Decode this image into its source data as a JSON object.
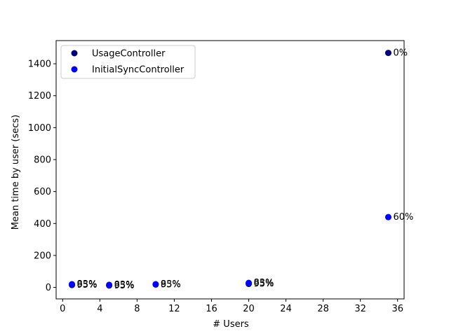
{
  "chart_data": {
    "type": "scatter",
    "title": "",
    "xlabel": "# Users",
    "ylabel": "Mean time by user (secs)",
    "xlim": [
      -0.7,
      36.7
    ],
    "ylim": [
      -72,
      1545
    ],
    "xticks": [
      0,
      4,
      8,
      12,
      16,
      20,
      24,
      28,
      32,
      36
    ],
    "yticks": [
      0,
      200,
      400,
      600,
      800,
      1000,
      1200,
      1400
    ],
    "grid": false,
    "legend_position": "top-left",
    "series": [
      {
        "name": "UsageController",
        "color": "#00007f",
        "points": [
          {
            "x": 1,
            "y": 15,
            "label": "95%"
          },
          {
            "x": 5,
            "y": 12,
            "label": "95%"
          },
          {
            "x": 10,
            "y": 18,
            "label": "95%"
          },
          {
            "x": 20,
            "y": 22,
            "label": "95%"
          },
          {
            "x": 35,
            "y": 1468,
            "label": "0%"
          }
        ]
      },
      {
        "name": "InitialSyncController",
        "color": "#0000ff",
        "points": [
          {
            "x": 1,
            "y": 20,
            "label": "83%"
          },
          {
            "x": 5,
            "y": 16,
            "label": "83%"
          },
          {
            "x": 10,
            "y": 20,
            "label": "83%"
          },
          {
            "x": 20,
            "y": 28,
            "label": "83%"
          },
          {
            "x": 35,
            "y": 440,
            "label": "60%"
          }
        ]
      }
    ]
  }
}
